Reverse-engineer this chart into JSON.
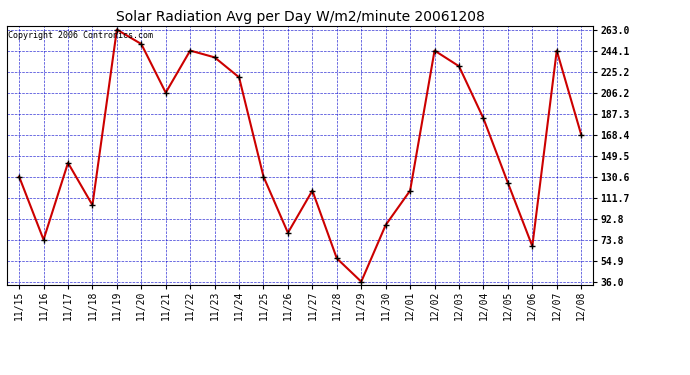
{
  "title": "Solar Radiation Avg per Day W/m2/minute 20061208",
  "copyright_text": "Copyright 2006 Contronics.com",
  "x_labels": [
    "11/15",
    "11/16",
    "11/17",
    "11/18",
    "11/19",
    "11/20",
    "11/21",
    "11/22",
    "11/23",
    "11/24",
    "11/25",
    "11/26",
    "11/27",
    "11/28",
    "11/29",
    "11/30",
    "12/01",
    "12/02",
    "12/03",
    "12/04",
    "12/05",
    "12/06",
    "12/07",
    "12/08"
  ],
  "y_values": [
    130.6,
    73.8,
    143.0,
    105.0,
    263.0,
    250.0,
    206.2,
    244.1,
    238.0,
    220.0,
    130.6,
    80.0,
    118.0,
    57.0,
    36.0,
    87.0,
    118.0,
    244.1,
    230.0,
    183.0,
    125.0,
    68.0,
    244.1,
    168.4
  ],
  "y_min": 36.0,
  "y_max": 263.0,
  "y_ticks": [
    36.0,
    54.9,
    73.8,
    92.8,
    111.7,
    130.6,
    149.5,
    168.4,
    187.3,
    206.2,
    225.2,
    244.1,
    263.0
  ],
  "line_color": "#cc0000",
  "marker_color": "#000000",
  "grid_color": "#0000cc",
  "bg_color": "#ffffff",
  "plot_bg_color": "#ffffff",
  "title_fontsize": 10,
  "copyright_fontsize": 6,
  "tick_fontsize": 7
}
